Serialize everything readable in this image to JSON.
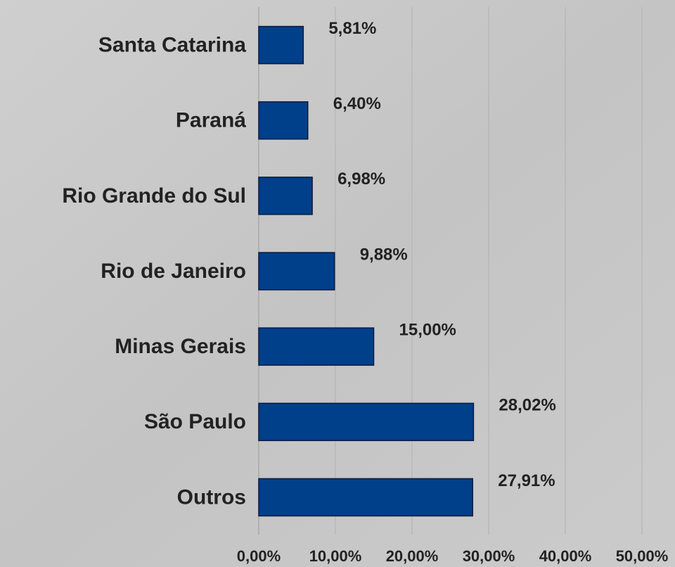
{
  "chart_data": {
    "type": "barh",
    "categories": [
      "Santa Catarina",
      "Paraná",
      "Rio Grande do Sul",
      "Rio de Janeiro",
      "Minas Gerais",
      "São Paulo",
      "Outros"
    ],
    "values": [
      5.81,
      6.4,
      6.98,
      9.88,
      15.0,
      28.02,
      27.91
    ],
    "value_labels": [
      "5,81%",
      "6,40%",
      "6,98%",
      "9,88%",
      "15,00%",
      "28,02%",
      "27,91%"
    ],
    "color": "#003f8a",
    "xlim": [
      0,
      50
    ],
    "xticks": [
      {
        "value": 0,
        "label": "0,00%"
      },
      {
        "value": 10,
        "label": "10,00%"
      },
      {
        "value": 20,
        "label": "20,00%"
      },
      {
        "value": 30,
        "label": "30,00%"
      },
      {
        "value": 40,
        "label": "40,00%"
      },
      {
        "value": 50,
        "label": "50,00%"
      }
    ],
    "grid": true
  }
}
